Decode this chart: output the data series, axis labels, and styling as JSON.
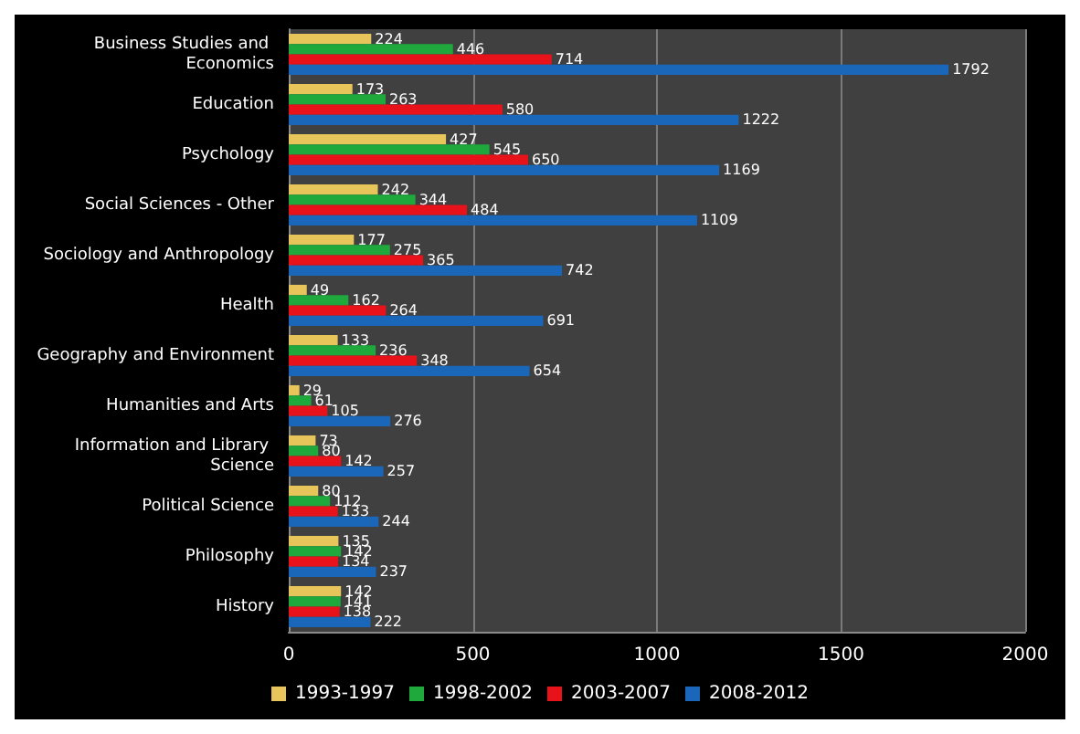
{
  "chart_data": {
    "type": "bar",
    "orientation": "horizontal",
    "categories": [
      "Business Studies and Economics",
      "Education",
      "Psychology",
      "Social Sciences - Other",
      "Sociology and Anthropology",
      "Health",
      "Geography and Environment",
      "Humanities and Arts",
      "Information and Library Science",
      "Political Science",
      "Philosophy",
      "History"
    ],
    "series": [
      {
        "name": "1993-1997",
        "color": "#e8c55a",
        "values": [
          224,
          173,
          427,
          242,
          177,
          49,
          133,
          29,
          73,
          80,
          135,
          142
        ]
      },
      {
        "name": "1998-2002",
        "color": "#1fa83c",
        "values": [
          446,
          263,
          545,
          344,
          275,
          162,
          236,
          61,
          80,
          112,
          142,
          141
        ]
      },
      {
        "name": "2003-2007",
        "color": "#e8131a",
        "values": [
          714,
          580,
          650,
          484,
          365,
          264,
          348,
          105,
          142,
          133,
          134,
          138
        ]
      },
      {
        "name": "2008-2012",
        "color": "#1a66b8",
        "values": [
          1792,
          1222,
          1169,
          1109,
          742,
          691,
          654,
          276,
          257,
          244,
          237,
          222
        ]
      }
    ],
    "xlim": [
      0,
      2000
    ],
    "xticks": [
      0,
      500,
      1000,
      1500,
      2000
    ],
    "grid": "x",
    "legend": "bottom",
    "data_labels": true
  }
}
